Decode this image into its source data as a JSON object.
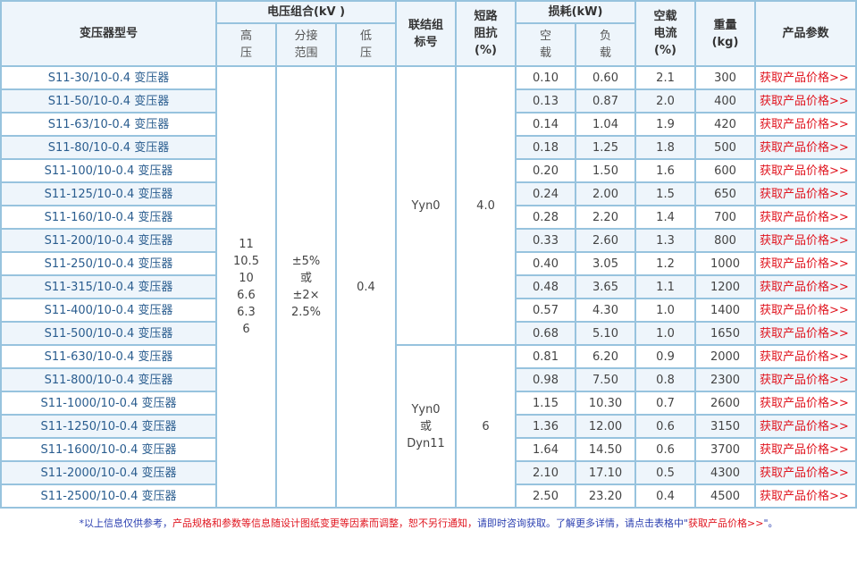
{
  "header": {
    "model": "变压器型号",
    "voltage": "电压组合(kV )",
    "hv": "高压",
    "tap": "分接范围",
    "lv": "低压",
    "vector": "联结组标号",
    "impedance": "短路阻抗(%)",
    "loss": "损耗(kW)",
    "noload": "空载",
    "load": "负载",
    "current": "空载电流(%)",
    "weight": "重量(kg)",
    "params": "产品参数"
  },
  "merged": {
    "hv": "11\n10.5\n10\n6.6\n6.3\n6",
    "tap": "±5%\n或\n±2×\n2.5%",
    "lv": "0.4",
    "vector1": "Yyn0",
    "impedance1": "4.0",
    "vector2": "Yyn0\n或\nDyn11",
    "impedance2": "6"
  },
  "price_label": "获取产品价格>>",
  "rows": [
    [
      "S11-30/10-0.4 变压器",
      "0.10",
      "0.60",
      "2.1",
      "300"
    ],
    [
      "S11-50/10-0.4 变压器",
      "0.13",
      "0.87",
      "2.0",
      "400"
    ],
    [
      "S11-63/10-0.4 变压器",
      "0.14",
      "1.04",
      "1.9",
      "420"
    ],
    [
      "S11-80/10-0.4 变压器",
      "0.18",
      "1.25",
      "1.8",
      "500"
    ],
    [
      "S11-100/10-0.4 变压器",
      "0.20",
      "1.50",
      "1.6",
      "600"
    ],
    [
      "S11-125/10-0.4 变压器",
      "0.24",
      "2.00",
      "1.5",
      "650"
    ],
    [
      "S11-160/10-0.4 变压器",
      "0.28",
      "2.20",
      "1.4",
      "700"
    ],
    [
      "S11-200/10-0.4 变压器",
      "0.33",
      "2.60",
      "1.3",
      "800"
    ],
    [
      "S11-250/10-0.4 变压器",
      "0.40",
      "3.05",
      "1.2",
      "1000"
    ],
    [
      "S11-315/10-0.4 变压器",
      "0.48",
      "3.65",
      "1.1",
      "1200"
    ],
    [
      "S11-400/10-0.4 变压器",
      "0.57",
      "4.30",
      "1.0",
      "1400"
    ],
    [
      "S11-500/10-0.4 变压器",
      "0.68",
      "5.10",
      "1.0",
      "1650"
    ],
    [
      "S11-630/10-0.4 变压器",
      "0.81",
      "6.20",
      "0.9",
      "2000"
    ],
    [
      "S11-800/10-0.4 变压器",
      "0.98",
      "7.50",
      "0.8",
      "2300"
    ],
    [
      "S11-1000/10-0.4 变压器",
      "1.15",
      "10.30",
      "0.7",
      "2600"
    ],
    [
      "S11-1250/10-0.4 变压器",
      "1.36",
      "12.00",
      "0.6",
      "3150"
    ],
    [
      "S11-1600/10-0.4 变压器",
      "1.64",
      "14.50",
      "0.6",
      "3700"
    ],
    [
      "S11-2000/10-0.4 变压器",
      "2.10",
      "17.10",
      "0.5",
      "4300"
    ],
    [
      "S11-2500/10-0.4 变压器",
      "2.50",
      "23.20",
      "0.4",
      "4500"
    ]
  ],
  "footnote": {
    "p1": "*以上信息仅供参考，",
    "p2": "产品规格和参数等信息随设计图纸变更等因素而调整，恕不另行通知，",
    "p3": "请即时咨询获取。了解更多详情，请点击表格中\"",
    "p4": "获取产品价格>>",
    "p5": "\"。"
  }
}
